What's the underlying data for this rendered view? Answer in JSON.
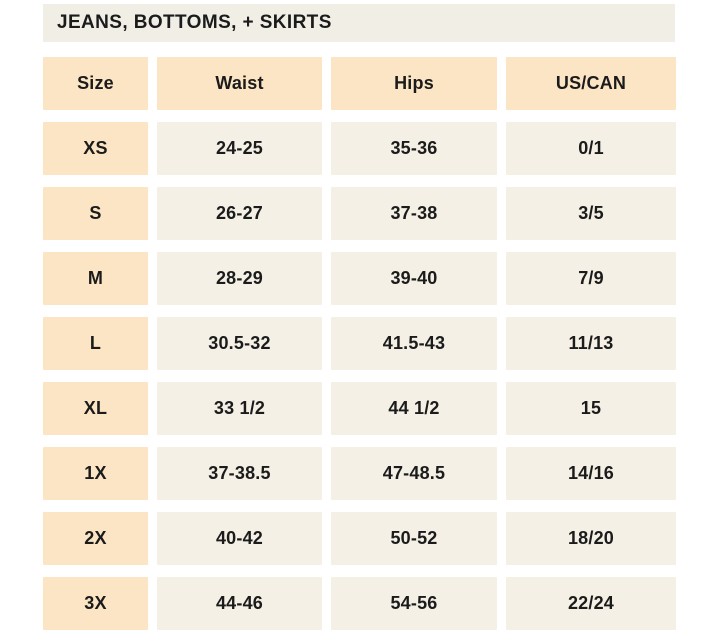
{
  "title_bar": {
    "label": "JEANS, BOTTOMS, + SKIRTS"
  },
  "chart_data": {
    "type": "table",
    "title": "JEANS, BOTTOMS, + SKIRTS",
    "columns": [
      "Size",
      "Waist",
      "Hips",
      "US/CAN"
    ],
    "rows": [
      [
        "XS",
        "24-25",
        "35-36",
        "0/1"
      ],
      [
        "S",
        "26-27",
        "37-38",
        "3/5"
      ],
      [
        "M",
        "28-29",
        "39-40",
        "7/9"
      ],
      [
        "L",
        "30.5-32",
        "41.5-43",
        "11/13"
      ],
      [
        "XL",
        "33 1/2",
        "44 1/2",
        "15"
      ],
      [
        "1X",
        "37-38.5",
        "47-48.5",
        "14/16"
      ],
      [
        "2X",
        "40-42",
        "50-52",
        "18/20"
      ],
      [
        "3X",
        "44-46",
        "54-56",
        "22/24"
      ]
    ]
  },
  "colors": {
    "page_bg": "#ffffff",
    "title_bar_bg": "#f0eee5",
    "header_and_size_bg": "#fce5c4",
    "value_cell_bg": "#f4f0e5",
    "text": "#1b1b1b"
  }
}
